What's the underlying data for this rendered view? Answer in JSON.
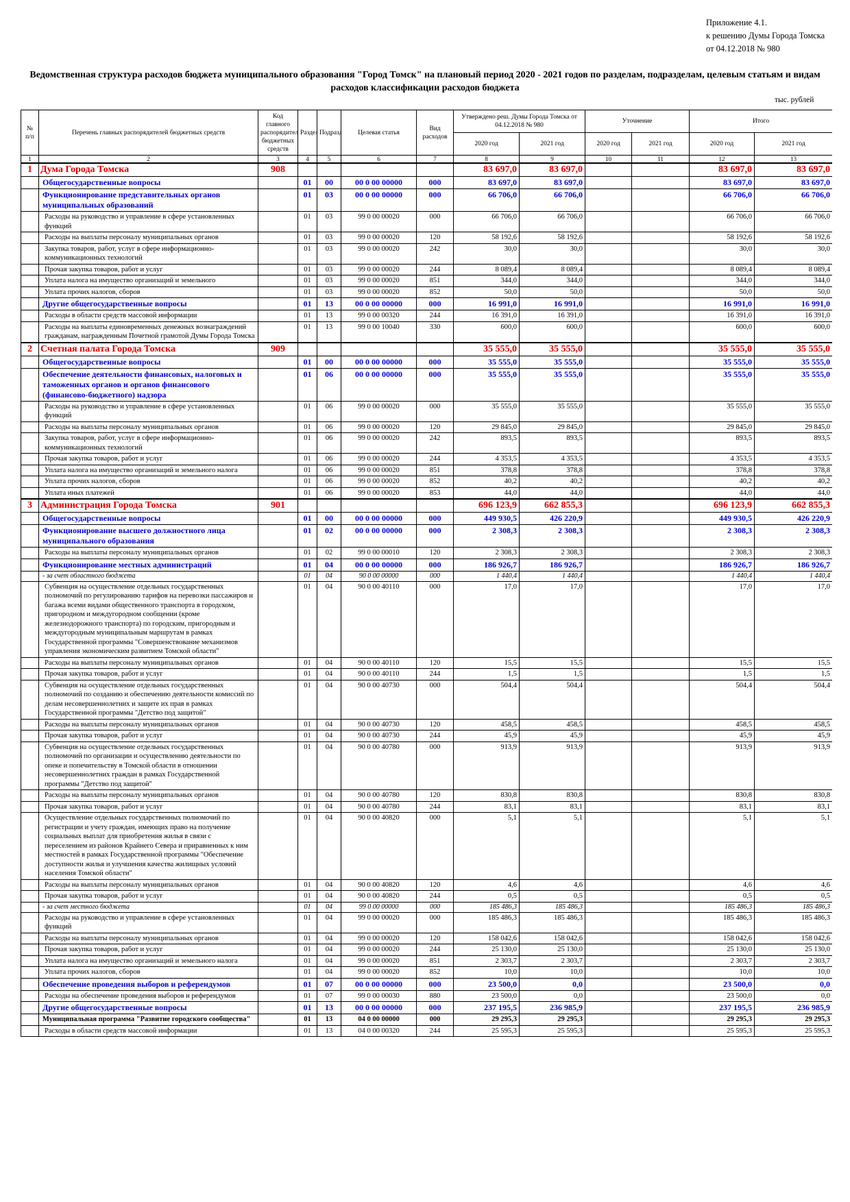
{
  "header": {
    "line1": "Приложение 4.1.",
    "line2": "к решению Думы Города Томска",
    "line3": "от 04.12.2018 № 980"
  },
  "title": "Ведомственная структура расходов бюджета муниципального образования \"Город Томск\" на плановый период 2020 - 2021 годов по разделам, подразделам, целевым статьям и видам расходов классификации расходов бюджета",
  "units": "тыс. рублей",
  "columns": {
    "num": "№ п/п",
    "name": "Перечень главных распорядителей бюджетных средств",
    "code": "Код главного распорядителя бюджетных средств",
    "razdel": "Раздел",
    "podrazdel": "Подраздел",
    "target": "Целевая статья",
    "vid": "Вид расходов",
    "approved": "Утверждено реш. Думы Города Томска от 04.12.2018 № 980",
    "clarify": "Уточнение",
    "total": "Итого",
    "y2020": "2020 год",
    "y2021": "2021 год"
  },
  "column_numbers": [
    "1",
    "2",
    "3",
    "4",
    "5",
    "6",
    "7",
    "8",
    "9",
    "10",
    "11",
    "12",
    "13"
  ],
  "rows": [
    {
      "t": "l0",
      "n": "1",
      "name": "Дума Города Томска",
      "code": "908",
      "rz": "",
      "pr": "",
      "cs": "",
      "vr": "",
      "a20": "83 697,0",
      "a21": "83 697,0",
      "u20": "",
      "u21": "",
      "i20": "83 697,0",
      "i21": "83 697,0"
    },
    {
      "t": "l1",
      "n": "",
      "name": "Общегосударственные вопросы",
      "code": "",
      "rz": "01",
      "pr": "00",
      "cs": "00 0 00 00000",
      "vr": "000",
      "a20": "83 697,0",
      "a21": "83 697,0",
      "u20": "",
      "u21": "",
      "i20": "83 697,0",
      "i21": "83 697,0"
    },
    {
      "t": "l1",
      "n": "",
      "name": "Функционирование представительных органов муниципальных образований",
      "code": "",
      "rz": "01",
      "pr": "03",
      "cs": "00 0 00 00000",
      "vr": "000",
      "a20": "66 706,0",
      "a21": "66 706,0",
      "u20": "",
      "u21": "",
      "i20": "66 706,0",
      "i21": "66 706,0"
    },
    {
      "t": "l2",
      "n": "",
      "name": "Расходы на руководство и управление в сфере установленных функций",
      "code": "",
      "rz": "01",
      "pr": "03",
      "cs": "99 0 00 00020",
      "vr": "000",
      "a20": "66 706,0",
      "a21": "66 706,0",
      "u20": "",
      "u21": "",
      "i20": "66 706,0",
      "i21": "66 706,0"
    },
    {
      "t": "l2",
      "n": "",
      "name": "Расходы на выплаты персоналу муниципальных органов",
      "code": "",
      "rz": "01",
      "pr": "03",
      "cs": "99 0 00 00020",
      "vr": "120",
      "a20": "58 192,6",
      "a21": "58 192,6",
      "u20": "",
      "u21": "",
      "i20": "58 192,6",
      "i21": "58 192,6"
    },
    {
      "t": "l2",
      "n": "",
      "name": "Закупка товаров, работ, услуг в сфере информационно-коммуникационных технологий",
      "code": "",
      "rz": "01",
      "pr": "03",
      "cs": "99 0 00 00020",
      "vr": "242",
      "a20": "30,0",
      "a21": "30,0",
      "u20": "",
      "u21": "",
      "i20": "30,0",
      "i21": "30,0"
    },
    {
      "t": "l2",
      "n": "",
      "name": "Прочая закупка товаров, работ и услуг",
      "code": "",
      "rz": "01",
      "pr": "03",
      "cs": "99 0 00 00020",
      "vr": "244",
      "a20": "8 089,4",
      "a21": "8 089,4",
      "u20": "",
      "u21": "",
      "i20": "8 089,4",
      "i21": "8 089,4"
    },
    {
      "t": "l2",
      "n": "",
      "name": "Уплата налога на имущество организаций и земельного",
      "code": "",
      "rz": "01",
      "pr": "03",
      "cs": "99 0 00 00020",
      "vr": "851",
      "a20": "344,0",
      "a21": "344,0",
      "u20": "",
      "u21": "",
      "i20": "344,0",
      "i21": "344,0"
    },
    {
      "t": "l2",
      "n": "",
      "name": "Уплата прочих налогов, сборов",
      "code": "",
      "rz": "01",
      "pr": "03",
      "cs": "99 0 00 00020",
      "vr": "852",
      "a20": "50,0",
      "a21": "50,0",
      "u20": "",
      "u21": "",
      "i20": "50,0",
      "i21": "50,0"
    },
    {
      "t": "l1",
      "n": "",
      "name": "Другие общегосударственные вопросы",
      "code": "",
      "rz": "01",
      "pr": "13",
      "cs": "00 0 00 00000",
      "vr": "000",
      "a20": "16 991,0",
      "a21": "16 991,0",
      "u20": "",
      "u21": "",
      "i20": "16 991,0",
      "i21": "16 991,0"
    },
    {
      "t": "l2",
      "n": "",
      "name": "Расходы в области средств массовой информации",
      "code": "",
      "rz": "01",
      "pr": "13",
      "cs": "99 0 00 00320",
      "vr": "244",
      "a20": "16 391,0",
      "a21": "16 391,0",
      "u20": "",
      "u21": "",
      "i20": "16 391,0",
      "i21": "16 391,0"
    },
    {
      "t": "l2",
      "n": "",
      "name": "Расходы на выплаты единовременных денежных вознаграждений гражданам, награжденным Почетной грамотой Думы Города Томска",
      "code": "",
      "rz": "01",
      "pr": "13",
      "cs": "99 0 00 10040",
      "vr": "330",
      "a20": "600,0",
      "a21": "600,0",
      "u20": "",
      "u21": "",
      "i20": "600,0",
      "i21": "600,0"
    },
    {
      "t": "l0",
      "n": "2",
      "name": "Счетная палата Города Томска",
      "code": "909",
      "rz": "",
      "pr": "",
      "cs": "",
      "vr": "",
      "a20": "35 555,0",
      "a21": "35 555,0",
      "u20": "",
      "u21": "",
      "i20": "35 555,0",
      "i21": "35 555,0"
    },
    {
      "t": "l1",
      "n": "",
      "name": "Общегосударственные вопросы",
      "code": "",
      "rz": "01",
      "pr": "00",
      "cs": "00 0 00 00000",
      "vr": "000",
      "a20": "35 555,0",
      "a21": "35 555,0",
      "u20": "",
      "u21": "",
      "i20": "35 555,0",
      "i21": "35 555,0"
    },
    {
      "t": "l1",
      "n": "",
      "name": "Обеспечение деятельности финансовых, налоговых и таможенных органов и органов финансового (финансово-бюджетного) надзора",
      "code": "",
      "rz": "01",
      "pr": "06",
      "cs": "00 0 00 00000",
      "vr": "000",
      "a20": "35 555,0",
      "a21": "35 555,0",
      "u20": "",
      "u21": "",
      "i20": "35 555,0",
      "i21": "35 555,0"
    },
    {
      "t": "l2",
      "n": "",
      "name": "Расходы на руководство и управление в сфере установленных функций",
      "code": "",
      "rz": "01",
      "pr": "06",
      "cs": "99 0 00 00020",
      "vr": "000",
      "a20": "35 555,0",
      "a21": "35 555,0",
      "u20": "",
      "u21": "",
      "i20": "35 555,0",
      "i21": "35 555,0"
    },
    {
      "t": "l2",
      "n": "",
      "name": "Расходы на выплаты персоналу муниципальных органов",
      "code": "",
      "rz": "01",
      "pr": "06",
      "cs": "99 0 00 00020",
      "vr": "120",
      "a20": "29 845,0",
      "a21": "29 845,0",
      "u20": "",
      "u21": "",
      "i20": "29 845,0",
      "i21": "29 845,0"
    },
    {
      "t": "l2",
      "n": "",
      "name": "Закупка товаров, работ, услуг в сфере информационно-коммуникационных технологий",
      "code": "",
      "rz": "01",
      "pr": "06",
      "cs": "99 0 00 00020",
      "vr": "242",
      "a20": "893,5",
      "a21": "893,5",
      "u20": "",
      "u21": "",
      "i20": "893,5",
      "i21": "893,5"
    },
    {
      "t": "l2",
      "n": "",
      "name": "Прочая закупка товаров, работ и услуг",
      "code": "",
      "rz": "01",
      "pr": "06",
      "cs": "99 0 00 00020",
      "vr": "244",
      "a20": "4 353,5",
      "a21": "4 353,5",
      "u20": "",
      "u21": "",
      "i20": "4 353,5",
      "i21": "4 353,5"
    },
    {
      "t": "l2",
      "n": "",
      "name": "Уплата налога на имущество организаций и земельного налога",
      "code": "",
      "rz": "01",
      "pr": "06",
      "cs": "99 0 00 00020",
      "vr": "851",
      "a20": "378,8",
      "a21": "378,8",
      "u20": "",
      "u21": "",
      "i20": "378,8",
      "i21": "378,8"
    },
    {
      "t": "l2",
      "n": "",
      "name": "Уплата прочих налогов, сборов",
      "code": "",
      "rz": "01",
      "pr": "06",
      "cs": "99 0 00 00020",
      "vr": "852",
      "a20": "40,2",
      "a21": "40,2",
      "u20": "",
      "u21": "",
      "i20": "40,2",
      "i21": "40,2"
    },
    {
      "t": "l2",
      "n": "",
      "name": "Уплата иных платежей",
      "code": "",
      "rz": "01",
      "pr": "06",
      "cs": "99 0 00 00020",
      "vr": "853",
      "a20": "44,0",
      "a21": "44,0",
      "u20": "",
      "u21": "",
      "i20": "44,0",
      "i21": "44,0"
    },
    {
      "t": "l0",
      "n": "3",
      "name": "Администрация Города Томска",
      "code": "901",
      "rz": "",
      "pr": "",
      "cs": "",
      "vr": "",
      "a20": "696 123,9",
      "a21": "662 855,3",
      "u20": "",
      "u21": "",
      "i20": "696 123,9",
      "i21": "662 855,3"
    },
    {
      "t": "l1",
      "n": "",
      "name": "Общегосударственные вопросы",
      "code": "",
      "rz": "01",
      "pr": "00",
      "cs": "00 0 00 00000",
      "vr": "000",
      "a20": "449 930,5",
      "a21": "426 220,9",
      "u20": "",
      "u21": "",
      "i20": "449 930,5",
      "i21": "426 220,9"
    },
    {
      "t": "l1",
      "n": "",
      "name": "Функционирование высшего должностного лица муниципального образования",
      "code": "",
      "rz": "01",
      "pr": "02",
      "cs": "00 0 00 00000",
      "vr": "000",
      "a20": "2 308,3",
      "a21": "2 308,3",
      "u20": "",
      "u21": "",
      "i20": "2 308,3",
      "i21": "2 308,3"
    },
    {
      "t": "l2",
      "n": "",
      "name": "Расходы на выплаты персоналу муниципальных органов",
      "code": "",
      "rz": "01",
      "pr": "02",
      "cs": "99 0 00 00010",
      "vr": "120",
      "a20": "2 308,3",
      "a21": "2 308,3",
      "u20": "",
      "u21": "",
      "i20": "2 308,3",
      "i21": "2 308,3"
    },
    {
      "t": "l1",
      "n": "",
      "name": "Функционирование местных администраций",
      "code": "",
      "rz": "01",
      "pr": "04",
      "cs": "00 0 00 00000",
      "vr": "000",
      "a20": "186 926,7",
      "a21": "186 926,7",
      "u20": "",
      "u21": "",
      "i20": "186 926,7",
      "i21": "186 926,7"
    },
    {
      "t": "l3",
      "n": "",
      "name": "- за счет областного бюджета",
      "code": "",
      "rz": "01",
      "pr": "04",
      "cs": "90 0 00 00000",
      "vr": "000",
      "a20": "1 440,4",
      "a21": "1 440,4",
      "u20": "",
      "u21": "",
      "i20": "1 440,4",
      "i21": "1 440,4"
    },
    {
      "t": "l2",
      "n": "",
      "name": "Субвенция на осуществление отдельных государственных полномочий по регулированию тарифов на перевозки пассажиров и багажа всеми видами общественного транспорта в городском, пригородном и междугородном сообщении (кроме железнодорожного транспорта) по городским, пригородным и междугородным муниципальным маршрутам в рамках Государственной программы \"Совершенствование механизмов управления экономическим развитием Томской области\"",
      "code": "",
      "rz": "01",
      "pr": "04",
      "cs": "90 0 00 40110",
      "vr": "000",
      "a20": "17,0",
      "a21": "17,0",
      "u20": "",
      "u21": "",
      "i20": "17,0",
      "i21": "17,0"
    },
    {
      "t": "l2",
      "n": "",
      "name": "Расходы на выплаты персоналу муниципальных органов",
      "code": "",
      "rz": "01",
      "pr": "04",
      "cs": "90 0 00 40110",
      "vr": "120",
      "a20": "15,5",
      "a21": "15,5",
      "u20": "",
      "u21": "",
      "i20": "15,5",
      "i21": "15,5"
    },
    {
      "t": "l2",
      "n": "",
      "name": "Прочая закупка товаров, работ и услуг",
      "code": "",
      "rz": "01",
      "pr": "04",
      "cs": "90 0 00 40110",
      "vr": "244",
      "a20": "1,5",
      "a21": "1,5",
      "u20": "",
      "u21": "",
      "i20": "1,5",
      "i21": "1,5"
    },
    {
      "t": "l2",
      "n": "",
      "name": "Субвенция на осуществление отдельных государственных полномочий по созданию и обеспечению деятельности комиссий по делам несовершеннолетних и защите их прав в рамках Государственной программы \"Детство под защитой\"",
      "code": "",
      "rz": "01",
      "pr": "04",
      "cs": "90 0 00 40730",
      "vr": "000",
      "a20": "504,4",
      "a21": "504,4",
      "u20": "",
      "u21": "",
      "i20": "504,4",
      "i21": "504,4"
    },
    {
      "t": "l2",
      "n": "",
      "name": "Расходы на выплаты персоналу муниципальных органов",
      "code": "",
      "rz": "01",
      "pr": "04",
      "cs": "90 0 00 40730",
      "vr": "120",
      "a20": "458,5",
      "a21": "458,5",
      "u20": "",
      "u21": "",
      "i20": "458,5",
      "i21": "458,5"
    },
    {
      "t": "l2",
      "n": "",
      "name": "Прочая закупка товаров, работ и услуг",
      "code": "",
      "rz": "01",
      "pr": "04",
      "cs": "90 0 00 40730",
      "vr": "244",
      "a20": "45,9",
      "a21": "45,9",
      "u20": "",
      "u21": "",
      "i20": "45,9",
      "i21": "45,9"
    },
    {
      "t": "l2",
      "n": "",
      "name": "Субвенция на осуществление отдельных государственных полномочий по организации и осуществлению деятельности по опеке и попечительству в Томской области в отношении несовершеннолетних граждан в рамках Государственной программы \"Детство под защитой\"",
      "code": "",
      "rz": "01",
      "pr": "04",
      "cs": "90 0 00 40780",
      "vr": "000",
      "a20": "913,9",
      "a21": "913,9",
      "u20": "",
      "u21": "",
      "i20": "913,9",
      "i21": "913,9"
    },
    {
      "t": "l2",
      "n": "",
      "name": "Расходы на выплаты персоналу муниципальных органов",
      "code": "",
      "rz": "01",
      "pr": "04",
      "cs": "90 0 00 40780",
      "vr": "120",
      "a20": "830,8",
      "a21": "830,8",
      "u20": "",
      "u21": "",
      "i20": "830,8",
      "i21": "830,8"
    },
    {
      "t": "l2",
      "n": "",
      "name": "Прочая закупка товаров, работ и услуг",
      "code": "",
      "rz": "01",
      "pr": "04",
      "cs": "90 0 00 40780",
      "vr": "244",
      "a20": "83,1",
      "a21": "83,1",
      "u20": "",
      "u21": "",
      "i20": "83,1",
      "i21": "83,1"
    },
    {
      "t": "l2",
      "n": "",
      "name": "Осуществление отдельных государственных полномочий по регистрации и учету граждан, имеющих право на получение социальных выплат для приобретения жилья в связи с переселением из районов Крайнего Севера и приравненных к ним местностей в рамках Государственной программы \"Обеспечение доступности жилья и улучшения качества жилищных условий населения Томской области\"",
      "code": "",
      "rz": "01",
      "pr": "04",
      "cs": "90 0 00 40820",
      "vr": "000",
      "a20": "5,1",
      "a21": "5,1",
      "u20": "",
      "u21": "",
      "i20": "5,1",
      "i21": "5,1"
    },
    {
      "t": "l2",
      "n": "",
      "name": "Расходы на выплаты персоналу муниципальных органов",
      "code": "",
      "rz": "01",
      "pr": "04",
      "cs": "90 0 00 40820",
      "vr": "120",
      "a20": "4,6",
      "a21": "4,6",
      "u20": "",
      "u21": "",
      "i20": "4,6",
      "i21": "4,6"
    },
    {
      "t": "l2",
      "n": "",
      "name": "Прочая закупка товаров, работ и услуг",
      "code": "",
      "rz": "01",
      "pr": "04",
      "cs": "90 0 00 40820",
      "vr": "244",
      "a20": "0,5",
      "a21": "0,5",
      "u20": "",
      "u21": "",
      "i20": "0,5",
      "i21": "0,5"
    },
    {
      "t": "l3",
      "n": "",
      "name": "- за счет местного бюджета",
      "code": "",
      "rz": "01",
      "pr": "04",
      "cs": "99 0 00 00000",
      "vr": "000",
      "a20": "185 486,3",
      "a21": "185 486,3",
      "u20": "",
      "u21": "",
      "i20": "185 486,3",
      "i21": "185 486,3"
    },
    {
      "t": "l2",
      "n": "",
      "name": "Расходы на руководство и управление в сфере установленных функций",
      "code": "",
      "rz": "01",
      "pr": "04",
      "cs": "99 0 00 00020",
      "vr": "000",
      "a20": "185 486,3",
      "a21": "185 486,3",
      "u20": "",
      "u21": "",
      "i20": "185 486,3",
      "i21": "185 486,3"
    },
    {
      "t": "l2",
      "n": "",
      "name": "Расходы на выплаты персоналу муниципальных органов",
      "code": "",
      "rz": "01",
      "pr": "04",
      "cs": "99 0 00 00020",
      "vr": "120",
      "a20": "158 042,6",
      "a21": "158 042,6",
      "u20": "",
      "u21": "",
      "i20": "158 042,6",
      "i21": "158 042,6"
    },
    {
      "t": "l2",
      "n": "",
      "name": "Прочая закупка товаров, работ и услуг",
      "code": "",
      "rz": "01",
      "pr": "04",
      "cs": "99 0 00 00020",
      "vr": "244",
      "a20": "25 130,0",
      "a21": "25 130,0",
      "u20": "",
      "u21": "",
      "i20": "25 130,0",
      "i21": "25 130,0"
    },
    {
      "t": "l2",
      "n": "",
      "name": "Уплата налога на имущество организаций и земельного налога",
      "code": "",
      "rz": "01",
      "pr": "04",
      "cs": "99 0 00 00020",
      "vr": "851",
      "a20": "2 303,7",
      "a21": "2 303,7",
      "u20": "",
      "u21": "",
      "i20": "2 303,7",
      "i21": "2 303,7"
    },
    {
      "t": "l2",
      "n": "",
      "name": "Уплата прочих налогов, сборов",
      "code": "",
      "rz": "01",
      "pr": "04",
      "cs": "99 0 00 00020",
      "vr": "852",
      "a20": "10,0",
      "a21": "10,0",
      "u20": "",
      "u21": "",
      "i20": "10,0",
      "i21": "10,0"
    },
    {
      "t": "l1",
      "n": "",
      "name": "Обеспечение проведения выборов и референдумов",
      "code": "",
      "rz": "01",
      "pr": "07",
      "cs": "00 0 00 00000",
      "vr": "000",
      "a20": "23 500,0",
      "a21": "0,0",
      "u20": "",
      "u21": "",
      "i20": "23 500,0",
      "i21": "0,0"
    },
    {
      "t": "l2",
      "n": "",
      "name": "Расходы на обеспечение проведения выборов и референдумов",
      "code": "",
      "rz": "01",
      "pr": "07",
      "cs": "99 0 00 00030",
      "vr": "880",
      "a20": "23 500,0",
      "a21": "0,0",
      "u20": "",
      "u21": "",
      "i20": "23 500,0",
      "i21": "0,0"
    },
    {
      "t": "l1",
      "n": "",
      "name": "Другие общегосударственные вопросы",
      "code": "",
      "rz": "01",
      "pr": "13",
      "cs": "00 0 00 00000",
      "vr": "000",
      "a20": "237 195,5",
      "a21": "236 985,9",
      "u20": "",
      "u21": "",
      "i20": "237 195,5",
      "i21": "236 985,9"
    },
    {
      "t": "lp",
      "n": "",
      "name": "Муниципальная программа \"Развитие городского сообщества\"",
      "code": "",
      "rz": "01",
      "pr": "13",
      "cs": "04 0 00 00000",
      "vr": "000",
      "a20": "29 295,3",
      "a21": "29 295,3",
      "u20": "",
      "u21": "",
      "i20": "29 295,3",
      "i21": "29 295,3"
    },
    {
      "t": "l2",
      "n": "",
      "name": "Расходы в области средств массовой информации",
      "code": "",
      "rz": "01",
      "pr": "13",
      "cs": "04 0 00 00320",
      "vr": "244",
      "a20": "25 595,3",
      "a21": "25 595,3",
      "u20": "",
      "u21": "",
      "i20": "25 595,3",
      "i21": "25 595,3"
    }
  ]
}
